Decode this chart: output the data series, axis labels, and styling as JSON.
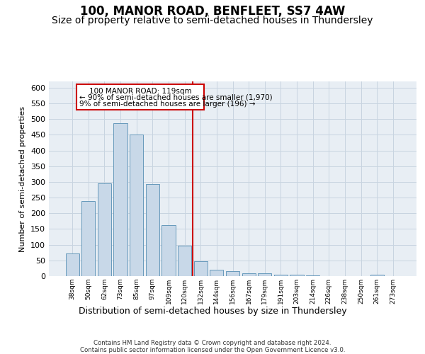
{
  "title": "100, MANOR ROAD, BENFLEET, SS7 4AW",
  "subtitle": "Size of property relative to semi-detached houses in Thundersley",
  "xlabel": "Distribution of semi-detached houses by size in Thundersley",
  "ylabel": "Number of semi-detached properties",
  "footer": "Contains HM Land Registry data © Crown copyright and database right 2024.\nContains public sector information licensed under the Open Government Licence v3.0.",
  "categories": [
    "38sqm",
    "50sqm",
    "62sqm",
    "73sqm",
    "85sqm",
    "97sqm",
    "109sqm",
    "120sqm",
    "132sqm",
    "144sqm",
    "156sqm",
    "167sqm",
    "179sqm",
    "191sqm",
    "203sqm",
    "214sqm",
    "226sqm",
    "238sqm",
    "250sqm",
    "261sqm",
    "273sqm"
  ],
  "values": [
    72,
    240,
    295,
    487,
    450,
    293,
    162,
    96,
    48,
    20,
    15,
    8,
    10,
    5,
    4,
    3,
    0,
    0,
    0,
    5,
    0
  ],
  "bar_color": "#c8d8e8",
  "bar_edge_color": "#6699bb",
  "vline_x_index": 7.5,
  "vline_color": "#cc0000",
  "annotation_line1": "100 MANOR ROAD: 119sqm",
  "annotation_line2": "← 90% of semi-detached houses are smaller (1,970)",
  "annotation_line3": "9% of semi-detached houses are larger (196) →",
  "annotation_box_color": "#ffffff",
  "annotation_box_edge": "#cc0000",
  "ylim": [
    0,
    620
  ],
  "yticks": [
    0,
    50,
    100,
    150,
    200,
    250,
    300,
    350,
    400,
    450,
    500,
    550,
    600
  ],
  "grid_color": "#c8d4e0",
  "bg_color": "#e8eef4",
  "title_fontsize": 12,
  "subtitle_fontsize": 10
}
